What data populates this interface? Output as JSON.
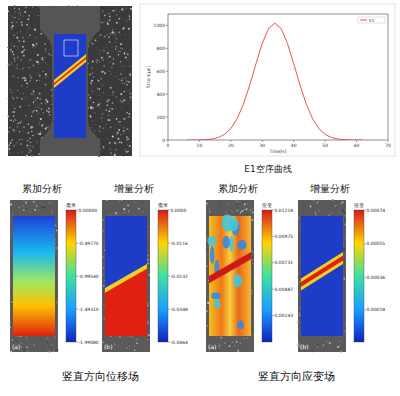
{
  "chart_data": {
    "type": "line",
    "title": "E1空序曲线",
    "x_label": "Time[s]",
    "y_label": "Strain[με]",
    "x": [
      6,
      8,
      10,
      12,
      14,
      16,
      18,
      20,
      22,
      24,
      26,
      28,
      30,
      32,
      34,
      36,
      38,
      40,
      42,
      44,
      46,
      48,
      50,
      52,
      54,
      56,
      58,
      60,
      62
    ],
    "series": [
      {
        "name": "E1",
        "color": "#e8413c",
        "values": [
          0,
          0,
          1,
          3,
          9,
          22,
          49,
          100,
          186,
          313,
          479,
          666,
          844,
          973,
          1020,
          973,
          844,
          666,
          479,
          313,
          186,
          100,
          49,
          22,
          9,
          3,
          1,
          0,
          0
        ]
      }
    ],
    "xlim": [
      0,
      70
    ],
    "xticks": [
      0,
      10,
      20,
      30,
      40,
      50,
      60,
      70
    ],
    "ylim": [
      0,
      1100
    ],
    "yticks": [
      0,
      200,
      400,
      600,
      800,
      1000
    ],
    "grid": false,
    "legend": "upper right"
  },
  "field_panels": [
    {
      "caption": "竖直方向位移场",
      "panels": [
        {
          "title": "累加分析",
          "label": "(a)",
          "unit": "毫米",
          "range": [
            -1.9908,
            0
          ],
          "ticks": [
            {
              "value": 0,
              "label": "0.00000"
            },
            {
              "value": -0.4977,
              "label": "-0.49770"
            },
            {
              "value": -0.9954,
              "label": "-0.99540"
            },
            {
              "value": -1.4931,
              "label": "-1.49310"
            },
            {
              "value": -1.9908,
              "label": "-1.99080"
            }
          ]
        },
        {
          "title": "增量分析",
          "label": "(b)",
          "unit": "毫米",
          "range": [
            -0.0464,
            0
          ],
          "ticks": [
            {
              "value": 0,
              "label": "0.0000"
            },
            {
              "value": -0.0116,
              "label": "-0.0116"
            },
            {
              "value": -0.0232,
              "label": "-0.0232"
            },
            {
              "value": -0.0348,
              "label": "-0.0348"
            },
            {
              "value": -0.0464,
              "label": "-0.0464"
            }
          ]
        }
      ]
    },
    {
      "caption": "竖直方向应变场",
      "panels": [
        {
          "title": "累加分析",
          "label": "(a)",
          "unit": "应变",
          "range": [
            0,
            0.01218
          ],
          "ticks": [
            {
              "value": 0.01218,
              "label": "0.01218"
            },
            {
              "value": 0.00975,
              "label": "0.00975"
            },
            {
              "value": 0.00731,
              "label": "0.00731"
            },
            {
              "value": 0.00487,
              "label": "0.00487"
            },
            {
              "value": 0.00243,
              "label": "0.00243"
            }
          ]
        },
        {
          "title": "增量分析",
          "label": "(b)",
          "unit": "应变",
          "range": [
            0,
            0.00074
          ],
          "ticks": [
            {
              "value": 0.00074,
              "label": "0.00074"
            },
            {
              "value": 0.00055,
              "label": "0.00055"
            },
            {
              "value": 0.00036,
              "label": "0.00036"
            },
            {
              "value": 0.00018,
              "label": "0.00018"
            }
          ]
        }
      ]
    }
  ]
}
